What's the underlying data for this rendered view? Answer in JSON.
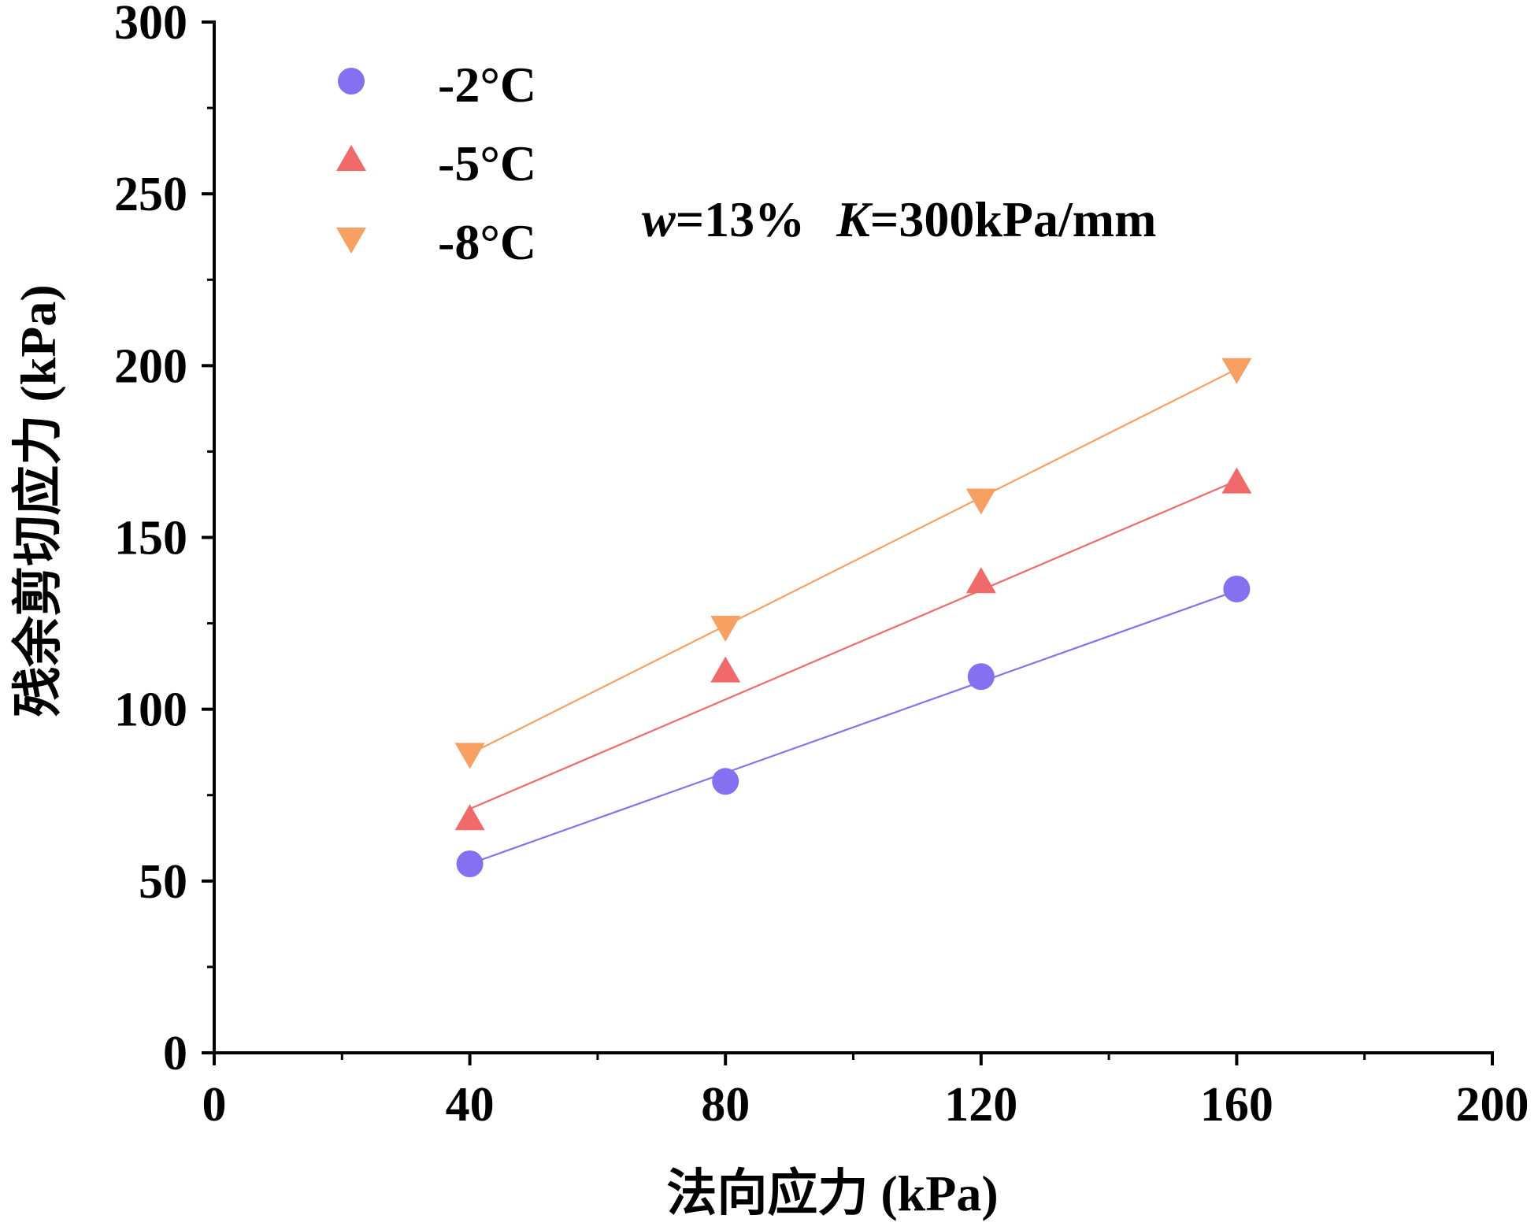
{
  "chart_data": {
    "type": "scatter",
    "title": "",
    "xlabel": "法向应力 (kPa)",
    "ylabel": "残余剪切应力 (kPa)",
    "xlim": [
      0,
      200
    ],
    "ylim": [
      0,
      300
    ],
    "x_ticks": [
      0,
      40,
      80,
      120,
      160,
      200
    ],
    "x_tick_labels": [
      "0",
      "40",
      "80",
      "120",
      "160",
      "200"
    ],
    "x_minor_ticks": [
      20,
      60,
      100,
      140,
      180
    ],
    "y_ticks": [
      0,
      50,
      100,
      150,
      200,
      250,
      300
    ],
    "y_tick_labels": [
      "0",
      "50",
      "100",
      "150",
      "200",
      "250",
      "300"
    ],
    "y_minor_ticks": [
      25,
      75,
      125,
      175,
      225,
      275
    ],
    "grid": false,
    "legend_position": "top-left",
    "annotation": {
      "w_symbol": "w",
      "w_value": "=13%",
      "k_symbol": "K",
      "k_value": "=300kPa/mm"
    },
    "series": [
      {
        "name": "-2°C",
        "marker": "circle",
        "color": "#8470f0",
        "x": [
          40,
          80,
          120,
          160
        ],
        "y": [
          55,
          79,
          109.5,
          135
        ],
        "fit": {
          "x": [
            40,
            160
          ],
          "y": [
            55,
            134.5
          ]
        }
      },
      {
        "name": "-5°C",
        "marker": "triangle-up",
        "color": "#f06a6a",
        "x": [
          40,
          80,
          120,
          160
        ],
        "y": [
          68,
          111,
          137,
          166
        ],
        "fit": {
          "x": [
            40,
            160
          ],
          "y": [
            71,
            166.5
          ]
        }
      },
      {
        "name": "-8°C",
        "marker": "triangle-down",
        "color": "#f7a062",
        "x": [
          40,
          80,
          120,
          160
        ],
        "y": [
          87,
          124,
          161,
          199
        ],
        "fit": {
          "x": [
            40,
            160
          ],
          "y": [
            87,
            199
          ]
        }
      }
    ]
  }
}
